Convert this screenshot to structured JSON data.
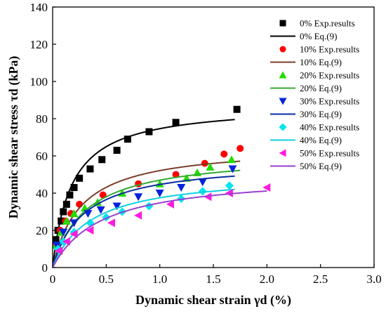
{
  "chart_data": {
    "type": "scatter",
    "xlabel": "Dynamic shear strain γd (%)",
    "ylabel": "Dynamic shear stress τd (kPa)",
    "xlim": [
      0,
      3.0
    ],
    "ylim": [
      0,
      140
    ],
    "x_ticks": [
      "0",
      "0.5",
      "1.0",
      "1.5",
      "2.0",
      "2.5",
      "3.0"
    ],
    "y_ticks": [
      "0",
      "20",
      "40",
      "60",
      "80",
      "100",
      "120",
      "140"
    ],
    "grid": false,
    "legend_placement": "top-right",
    "series": [
      {
        "name": "0% Exp.results",
        "kind": "markers",
        "marker": "square",
        "color": "#000000",
        "points": [
          [
            0.03,
            15
          ],
          [
            0.05,
            20
          ],
          [
            0.08,
            25
          ],
          [
            0.1,
            30
          ],
          [
            0.13,
            34
          ],
          [
            0.16,
            39
          ],
          [
            0.2,
            43
          ],
          [
            0.25,
            48
          ],
          [
            0.35,
            53
          ],
          [
            0.46,
            58
          ],
          [
            0.6,
            63
          ],
          [
            0.7,
            69
          ],
          [
            0.9,
            73
          ],
          [
            1.15,
            78
          ],
          [
            1.72,
            85
          ]
        ]
      },
      {
        "name": "0% Eq.(9)",
        "kind": "curve",
        "color": "#000000",
        "x_range": [
          0.005,
          1.7
        ],
        "a": 0.002,
        "b": 0.0114
      },
      {
        "name": "10% Exp.results",
        "kind": "markers",
        "marker": "circle",
        "color": "#ff0000",
        "points": [
          [
            0.03,
            12
          ],
          [
            0.07,
            20
          ],
          [
            0.12,
            25
          ],
          [
            0.17,
            29
          ],
          [
            0.25,
            34
          ],
          [
            0.47,
            39
          ],
          [
            0.8,
            45
          ],
          [
            1.15,
            50
          ],
          [
            1.42,
            56
          ],
          [
            1.6,
            61
          ],
          [
            1.75,
            64
          ]
        ]
      },
      {
        "name": "10% Eq.(9)",
        "kind": "curve",
        "color": "#7b3f2a",
        "x_range": [
          0.005,
          1.75
        ],
        "a": 0.004,
        "b": 0.0152
      },
      {
        "name": "20% Exp.results",
        "kind": "markers",
        "marker": "triangle-up",
        "color": "#22dd00",
        "points": [
          [
            0.03,
            12
          ],
          [
            0.08,
            19
          ],
          [
            0.13,
            25
          ],
          [
            0.2,
            29
          ],
          [
            0.3,
            32
          ],
          [
            0.42,
            35
          ],
          [
            0.65,
            40
          ],
          [
            1.0,
            45
          ],
          [
            1.25,
            48
          ],
          [
            1.35,
            51
          ],
          [
            1.47,
            54
          ],
          [
            1.67,
            58
          ]
        ]
      },
      {
        "name": "20% Eq.(9)",
        "kind": "curve",
        "color": "#33aa33",
        "x_range": [
          0.005,
          1.75
        ],
        "a": 0.005,
        "b": 0.0163
      },
      {
        "name": "30% Exp.results",
        "kind": "markers",
        "marker": "triangle-down",
        "color": "#0022dd",
        "points": [
          [
            0.04,
            12
          ],
          [
            0.1,
            19
          ],
          [
            0.2,
            24
          ],
          [
            0.33,
            29
          ],
          [
            0.45,
            31
          ],
          [
            0.6,
            33
          ],
          [
            0.8,
            38
          ],
          [
            1.0,
            40
          ],
          [
            1.2,
            43
          ],
          [
            1.4,
            46
          ],
          [
            1.68,
            53
          ]
        ]
      },
      {
        "name": "30% Eq.(9)",
        "kind": "curve",
        "color": "#0a2da0",
        "x_range": [
          0.005,
          1.7
        ],
        "a": 0.005,
        "b": 0.0174
      },
      {
        "name": "40% Exp.results",
        "kind": "markers",
        "marker": "diamond",
        "color": "#00e5ee",
        "points": [
          [
            0.05,
            10
          ],
          [
            0.1,
            14
          ],
          [
            0.2,
            19
          ],
          [
            0.35,
            24
          ],
          [
            0.5,
            27
          ],
          [
            0.65,
            30
          ],
          [
            0.9,
            33
          ],
          [
            1.2,
            37
          ],
          [
            1.4,
            41
          ],
          [
            1.65,
            44
          ]
        ]
      },
      {
        "name": "40% Eq.(9)",
        "kind": "curve",
        "color": "#11d0e0",
        "x_range": [
          0.005,
          1.7
        ],
        "a": 0.007,
        "b": 0.0197
      },
      {
        "name": "50% Exp.results",
        "kind": "markers",
        "marker": "triangle-left",
        "color": "#ff1adf",
        "points": [
          [
            0.06,
            9
          ],
          [
            0.13,
            14
          ],
          [
            0.2,
            18
          ],
          [
            0.35,
            20
          ],
          [
            0.55,
            24
          ],
          [
            0.8,
            28
          ],
          [
            1.1,
            34
          ],
          [
            1.45,
            38
          ],
          [
            1.65,
            40
          ],
          [
            2.0,
            43
          ]
        ]
      },
      {
        "name": "50% Eq.(9)",
        "kind": "curve",
        "color": "#9a3fd0",
        "x_range": [
          0.005,
          2.0
        ],
        "a": 0.009,
        "b": 0.0198
      }
    ]
  }
}
